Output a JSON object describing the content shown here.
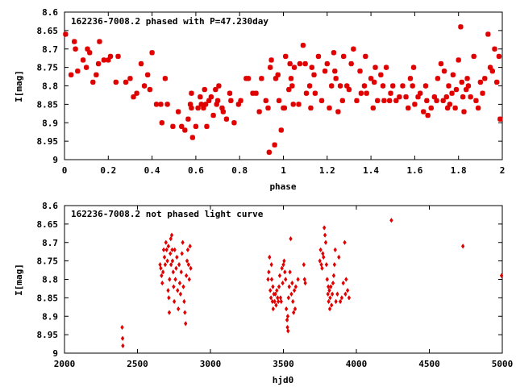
{
  "chart_data": [
    {
      "type": "scatter",
      "title": "162236-7008.2 phased with P=47.230day",
      "xlabel": "phase",
      "ylabel": "I[mag]",
      "xlim": [
        0,
        2
      ],
      "ylim": [
        9,
        8.6
      ],
      "y_inverted": true,
      "grid": false,
      "marker_color": "#e00000",
      "xticks": [
        "0",
        "0.2",
        "0.4",
        "0.6",
        "0.8",
        "1",
        "1.2",
        "1.4",
        "1.6",
        "1.8",
        "2"
      ],
      "yticks": [
        "8.6",
        "8.65",
        "8.7",
        "8.75",
        "8.8",
        "8.85",
        "8.9",
        "8.95",
        "9"
      ],
      "points": [
        [
          0.005,
          8.66
        ],
        [
          0.03,
          8.77
        ],
        [
          0.045,
          8.68
        ],
        [
          0.05,
          8.7
        ],
        [
          0.06,
          8.76
        ],
        [
          0.085,
          8.73
        ],
        [
          0.1,
          8.75
        ],
        [
          0.105,
          8.7
        ],
        [
          0.115,
          8.71
        ],
        [
          0.13,
          8.79
        ],
        [
          0.145,
          8.77
        ],
        [
          0.155,
          8.74
        ],
        [
          0.16,
          8.68
        ],
        [
          0.18,
          8.73
        ],
        [
          0.2,
          8.73
        ],
        [
          0.21,
          8.72
        ],
        [
          0.235,
          8.79
        ],
        [
          0.245,
          8.72
        ],
        [
          0.28,
          8.79
        ],
        [
          0.3,
          8.78
        ],
        [
          0.315,
          8.83
        ],
        [
          0.33,
          8.82
        ],
        [
          0.35,
          8.74
        ],
        [
          0.365,
          8.8
        ],
        [
          0.38,
          8.77
        ],
        [
          0.39,
          8.81
        ],
        [
          0.4,
          8.71
        ],
        [
          0.42,
          8.85
        ],
        [
          0.44,
          8.85
        ],
        [
          0.445,
          8.9
        ],
        [
          0.46,
          8.78
        ],
        [
          0.47,
          8.85
        ],
        [
          0.495,
          8.91
        ],
        [
          0.52,
          8.87
        ],
        [
          0.535,
          8.91
        ],
        [
          0.55,
          8.92
        ],
        [
          0.565,
          8.89
        ],
        [
          0.575,
          8.85
        ],
        [
          0.58,
          8.86
        ],
        [
          0.58,
          8.82
        ],
        [
          0.585,
          8.94
        ],
        [
          0.6,
          8.91
        ],
        [
          0.61,
          8.86
        ],
        [
          0.62,
          8.83
        ],
        [
          0.625,
          8.85
        ],
        [
          0.635,
          8.86
        ],
        [
          0.64,
          8.81
        ],
        [
          0.645,
          8.85
        ],
        [
          0.65,
          8.91
        ],
        [
          0.66,
          8.84
        ],
        [
          0.67,
          8.83
        ],
        [
          0.68,
          8.88
        ],
        [
          0.69,
          8.81
        ],
        [
          0.695,
          8.85
        ],
        [
          0.7,
          8.84
        ],
        [
          0.705,
          8.8
        ],
        [
          0.72,
          8.86
        ],
        [
          0.725,
          8.87
        ],
        [
          0.74,
          8.89
        ],
        [
          0.755,
          8.82
        ],
        [
          0.76,
          8.84
        ],
        [
          0.775,
          8.9
        ],
        [
          0.795,
          8.85
        ],
        [
          0.805,
          8.84
        ],
        [
          0.83,
          8.78
        ],
        [
          0.84,
          8.78
        ],
        [
          0.86,
          8.82
        ],
        [
          0.875,
          8.82
        ],
        [
          0.89,
          8.87
        ],
        [
          0.9,
          8.78
        ],
        [
          0.92,
          8.84
        ],
        [
          0.93,
          8.86
        ],
        [
          0.935,
          8.98
        ],
        [
          0.94,
          8.75
        ],
        [
          0.945,
          8.73
        ],
        [
          0.96,
          8.96
        ],
        [
          0.965,
          8.78
        ],
        [
          0.975,
          8.77
        ],
        [
          0.98,
          8.84
        ],
        [
          0.99,
          8.92
        ],
        [
          1.0,
          8.86
        ],
        [
          1.005,
          8.86
        ],
        [
          1.01,
          8.72
        ],
        [
          1.025,
          8.81
        ],
        [
          1.03,
          8.74
        ],
        [
          1.035,
          8.78
        ],
        [
          1.04,
          8.8
        ],
        [
          1.045,
          8.85
        ],
        [
          1.05,
          8.75
        ],
        [
          1.07,
          8.85
        ],
        [
          1.075,
          8.74
        ],
        [
          1.09,
          8.69
        ],
        [
          1.1,
          8.74
        ],
        [
          1.105,
          8.82
        ],
        [
          1.12,
          8.8
        ],
        [
          1.125,
          8.86
        ],
        [
          1.13,
          8.75
        ],
        [
          1.14,
          8.77
        ],
        [
          1.145,
          8.82
        ],
        [
          1.16,
          8.72
        ],
        [
          1.175,
          8.84
        ],
        [
          1.19,
          8.76
        ],
        [
          1.2,
          8.74
        ],
        [
          1.21,
          8.86
        ],
        [
          1.22,
          8.8
        ],
        [
          1.23,
          8.71
        ],
        [
          1.235,
          8.76
        ],
        [
          1.24,
          8.78
        ],
        [
          1.25,
          8.87
        ],
        [
          1.26,
          8.8
        ],
        [
          1.27,
          8.84
        ],
        [
          1.275,
          8.72
        ],
        [
          1.29,
          8.8
        ],
        [
          1.3,
          8.81
        ],
        [
          1.31,
          8.74
        ],
        [
          1.32,
          8.7
        ],
        [
          1.335,
          8.84
        ],
        [
          1.35,
          8.76
        ],
        [
          1.355,
          8.82
        ],
        [
          1.37,
          8.8
        ],
        [
          1.375,
          8.72
        ],
        [
          1.38,
          8.82
        ],
        [
          1.4,
          8.78
        ],
        [
          1.41,
          8.86
        ],
        [
          1.415,
          8.79
        ],
        [
          1.42,
          8.75
        ],
        [
          1.43,
          8.84
        ],
        [
          1.445,
          8.77
        ],
        [
          1.455,
          8.8
        ],
        [
          1.46,
          8.84
        ],
        [
          1.47,
          8.75
        ],
        [
          1.485,
          8.84
        ],
        [
          1.49,
          8.82
        ],
        [
          1.5,
          8.8
        ],
        [
          1.515,
          8.84
        ],
        [
          1.53,
          8.83
        ],
        [
          1.545,
          8.8
        ],
        [
          1.56,
          8.83
        ],
        [
          1.57,
          8.86
        ],
        [
          1.58,
          8.78
        ],
        [
          1.59,
          8.8
        ],
        [
          1.595,
          8.75
        ],
        [
          1.6,
          8.85
        ],
        [
          1.615,
          8.83
        ],
        [
          1.625,
          8.82
        ],
        [
          1.64,
          8.87
        ],
        [
          1.65,
          8.8
        ],
        [
          1.655,
          8.84
        ],
        [
          1.66,
          8.88
        ],
        [
          1.675,
          8.86
        ],
        [
          1.69,
          8.83
        ],
        [
          1.7,
          8.84
        ],
        [
          1.705,
          8.78
        ],
        [
          1.72,
          8.74
        ],
        [
          1.73,
          8.84
        ],
        [
          1.735,
          8.76
        ],
        [
          1.745,
          8.83
        ],
        [
          1.75,
          8.86
        ],
        [
          1.755,
          8.8
        ],
        [
          1.76,
          8.85
        ],
        [
          1.77,
          8.82
        ],
        [
          1.775,
          8.77
        ],
        [
          1.785,
          8.86
        ],
        [
          1.79,
          8.81
        ],
        [
          1.8,
          8.73
        ],
        [
          1.81,
          8.64
        ],
        [
          1.815,
          8.79
        ],
        [
          1.82,
          8.83
        ],
        [
          1.825,
          8.87
        ],
        [
          1.835,
          8.81
        ],
        [
          1.84,
          8.78
        ],
        [
          1.845,
          8.8
        ],
        [
          1.855,
          8.83
        ],
        [
          1.87,
          8.72
        ],
        [
          1.88,
          8.84
        ],
        [
          1.89,
          8.86
        ],
        [
          1.9,
          8.79
        ],
        [
          1.91,
          8.82
        ],
        [
          1.92,
          8.78
        ],
        [
          1.935,
          8.66
        ],
        [
          1.945,
          8.75
        ],
        [
          1.955,
          8.76
        ],
        [
          1.965,
          8.7
        ],
        [
          1.975,
          8.79
        ],
        [
          1.985,
          8.72
        ],
        [
          1.99,
          8.89
        ]
      ]
    },
    {
      "type": "scatter",
      "title": "162236-7008.2 not phased light curve",
      "xlabel": "hjd0",
      "ylabel": "I[mag]",
      "xlim": [
        2000,
        5000
      ],
      "ylim": [
        9,
        8.6
      ],
      "y_inverted": true,
      "grid": false,
      "marker_color": "#e00000",
      "xticks": [
        "2000",
        "2500",
        "3000",
        "3500",
        "4000",
        "4500",
        "5000"
      ],
      "yticks": [
        "8.6",
        "8.65",
        "8.7",
        "8.75",
        "8.8",
        "8.85",
        "8.9",
        "8.95",
        "9"
      ],
      "points": [
        [
          2395,
          8.93
        ],
        [
          2398,
          8.96
        ],
        [
          2400,
          8.98
        ],
        [
          2655,
          8.76
        ],
        [
          2660,
          8.77
        ],
        [
          2665,
          8.79
        ],
        [
          2670,
          8.81
        ],
        [
          2675,
          8.78
        ],
        [
          2680,
          8.72
        ],
        [
          2685,
          8.74
        ],
        [
          2690,
          8.76
        ],
        [
          2695,
          8.7
        ],
        [
          2700,
          8.72
        ],
        [
          2705,
          8.75
        ],
        [
          2710,
          8.83
        ],
        [
          2712,
          8.71
        ],
        [
          2715,
          8.85
        ],
        [
          2718,
          8.89
        ],
        [
          2720,
          8.8
        ],
        [
          2725,
          8.73
        ],
        [
          2728,
          8.69
        ],
        [
          2730,
          8.76
        ],
        [
          2735,
          8.68
        ],
        [
          2738,
          8.72
        ],
        [
          2740,
          8.75
        ],
        [
          2745,
          8.78
        ],
        [
          2748,
          8.82
        ],
        [
          2752,
          8.86
        ],
        [
          2755,
          8.72
        ],
        [
          2760,
          8.8
        ],
        [
          2765,
          8.77
        ],
        [
          2770,
          8.74
        ],
        [
          2775,
          8.83
        ],
        [
          2780,
          8.88
        ],
        [
          2785,
          8.76
        ],
        [
          2790,
          8.81
        ],
        [
          2795,
          8.84
        ],
        [
          2800,
          8.78
        ],
        [
          2805,
          8.73
        ],
        [
          2810,
          8.7
        ],
        [
          2815,
          8.82
        ],
        [
          2820,
          8.86
        ],
        [
          2825,
          8.89
        ],
        [
          2830,
          8.92
        ],
        [
          2835,
          8.79
        ],
        [
          2840,
          8.75
        ],
        [
          2845,
          8.72
        ],
        [
          2850,
          8.76
        ],
        [
          2855,
          8.8
        ],
        [
          2860,
          8.71
        ],
        [
          2865,
          8.77
        ],
        [
          3395,
          8.8
        ],
        [
          3400,
          8.78
        ],
        [
          3405,
          8.74
        ],
        [
          3410,
          8.83
        ],
        [
          3415,
          8.85
        ],
        [
          3418,
          8.76
        ],
        [
          3420,
          8.8
        ],
        [
          3425,
          8.86
        ],
        [
          3428,
          8.82
        ],
        [
          3430,
          8.88
        ],
        [
          3435,
          8.84
        ],
        [
          3440,
          8.86
        ],
        [
          3445,
          8.84
        ],
        [
          3450,
          8.87
        ],
        [
          3455,
          8.83
        ],
        [
          3460,
          8.85
        ],
        [
          3465,
          8.86
        ],
        [
          3470,
          8.82
        ],
        [
          3475,
          8.79
        ],
        [
          3480,
          8.85
        ],
        [
          3485,
          8.86
        ],
        [
          3490,
          8.77
        ],
        [
          3495,
          8.81
        ],
        [
          3500,
          8.76
        ],
        [
          3505,
          8.75
        ],
        [
          3510,
          8.78
        ],
        [
          3515,
          8.8
        ],
        [
          3520,
          8.88
        ],
        [
          3525,
          8.91
        ],
        [
          3528,
          8.93
        ],
        [
          3530,
          8.9
        ],
        [
          3532,
          8.94
        ],
        [
          3535,
          8.85
        ],
        [
          3540,
          8.82
        ],
        [
          3545,
          8.78
        ],
        [
          3550,
          8.69
        ],
        [
          3555,
          8.84
        ],
        [
          3560,
          8.81
        ],
        [
          3565,
          8.86
        ],
        [
          3570,
          8.89
        ],
        [
          3575,
          8.83
        ],
        [
          3580,
          8.88
        ],
        [
          3585,
          8.82
        ],
        [
          3600,
          8.8
        ],
        [
          3640,
          8.76
        ],
        [
          3645,
          8.8
        ],
        [
          3650,
          8.81
        ],
        [
          3750,
          8.75
        ],
        [
          3755,
          8.72
        ],
        [
          3760,
          8.76
        ],
        [
          3765,
          8.77
        ],
        [
          3770,
          8.73
        ],
        [
          3775,
          8.74
        ],
        [
          3780,
          8.66
        ],
        [
          3785,
          8.68
        ],
        [
          3790,
          8.7
        ],
        [
          3795,
          8.76
        ],
        [
          3800,
          8.8
        ],
        [
          3805,
          8.84
        ],
        [
          3808,
          8.82
        ],
        [
          3810,
          8.86
        ],
        [
          3815,
          8.83
        ],
        [
          3818,
          8.88
        ],
        [
          3820,
          8.85
        ],
        [
          3825,
          8.82
        ],
        [
          3830,
          8.87
        ],
        [
          3835,
          8.84
        ],
        [
          3840,
          8.81
        ],
        [
          3845,
          8.79
        ],
        [
          3850,
          8.76
        ],
        [
          3855,
          8.72
        ],
        [
          3860,
          8.86
        ],
        [
          3870,
          8.84
        ],
        [
          3880,
          8.74
        ],
        [
          3890,
          8.86
        ],
        [
          3900,
          8.85
        ],
        [
          3910,
          8.81
        ],
        [
          3920,
          8.7
        ],
        [
          3925,
          8.84
        ],
        [
          3930,
          8.8
        ],
        [
          3940,
          8.83
        ],
        [
          3950,
          8.85
        ],
        [
          4240,
          8.64
        ],
        [
          4730,
          8.71
        ],
        [
          4995,
          8.79
        ]
      ]
    }
  ]
}
